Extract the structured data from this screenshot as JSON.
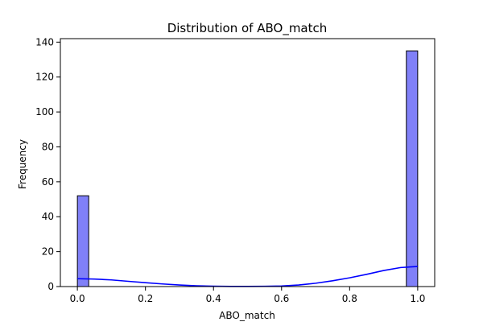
{
  "chart_data": {
    "type": "bar",
    "title": "Distribution of ABO_match",
    "xlabel": "ABO_match",
    "ylabel": "Frequency",
    "xlim": [
      -0.05,
      1.05
    ],
    "ylim": [
      0,
      142
    ],
    "x_ticks": [
      0.0,
      0.2,
      0.4,
      0.6,
      0.8,
      1.0
    ],
    "x_tick_labels": [
      "0.0",
      "0.2",
      "0.4",
      "0.6",
      "0.8",
      "1.0"
    ],
    "y_ticks": [
      0,
      20,
      40,
      60,
      80,
      100,
      120,
      140
    ],
    "y_tick_labels": [
      "0",
      "20",
      "40",
      "60",
      "80",
      "100",
      "120",
      "140"
    ],
    "grid": false,
    "bins": [
      {
        "x0": 0.0,
        "x1": 0.0333,
        "count": 52
      },
      {
        "x0": 0.9667,
        "x1": 1.0,
        "count": 135
      }
    ],
    "kde": {
      "x": [
        0.0,
        0.05,
        0.1,
        0.15,
        0.2,
        0.25,
        0.3,
        0.35,
        0.4,
        0.45,
        0.5,
        0.55,
        0.6,
        0.65,
        0.7,
        0.75,
        0.8,
        0.85,
        0.9,
        0.95,
        1.0
      ],
      "y": [
        4.5,
        4.3,
        3.8,
        3.0,
        2.2,
        1.5,
        0.9,
        0.45,
        0.2,
        0.1,
        0.1,
        0.15,
        0.35,
        0.9,
        1.9,
        3.3,
        5.0,
        7.0,
        9.2,
        10.9,
        11.5
      ]
    },
    "colors": {
      "bar_fill": "#8080f8",
      "bar_edge": "#000000",
      "kde_line": "#0000ff"
    }
  }
}
